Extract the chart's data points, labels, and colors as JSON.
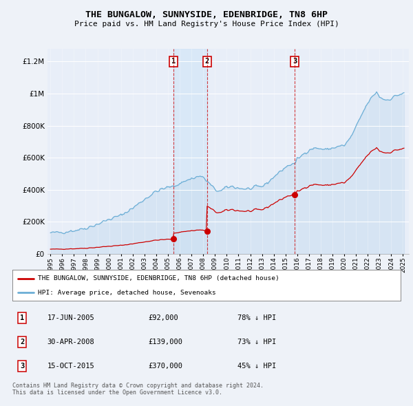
{
  "title": "THE BUNGALOW, SUNNYSIDE, EDENBRIDGE, TN8 6HP",
  "subtitle": "Price paid vs. HM Land Registry's House Price Index (HPI)",
  "ytick_values": [
    0,
    200000,
    400000,
    600000,
    800000,
    1000000,
    1200000
  ],
  "ytick_labels": [
    "£0",
    "£200K",
    "£400K",
    "£600K",
    "£800K",
    "£1M",
    "£1.2M"
  ],
  "ylim": [
    0,
    1280000
  ],
  "xlim_start": 1994.75,
  "xlim_end": 2025.5,
  "sale_events": [
    {
      "label": "1",
      "date_str": "17-JUN-2005",
      "x": 2005.46,
      "price": 92000,
      "pct": "78% ↓ HPI"
    },
    {
      "label": "2",
      "date_str": "30-APR-2008",
      "x": 2008.33,
      "price": 139000,
      "pct": "73% ↓ HPI"
    },
    {
      "label": "3",
      "date_str": "15-OCT-2015",
      "x": 2015.79,
      "price": 370000,
      "pct": "45% ↓ HPI"
    }
  ],
  "hpi_color": "#6baed6",
  "hpi_fill_color": "#c6dbef",
  "price_color": "#cc0000",
  "background_color": "#eef2f8",
  "plot_bg_color": "#e8eef8",
  "grid_color": "#ffffff",
  "legend_label_price": "THE BUNGALOW, SUNNYSIDE, EDENBRIDGE, TN8 6HP (detached house)",
  "legend_label_hpi": "HPI: Average price, detached house, Sevenoaks",
  "footer": "Contains HM Land Registry data © Crown copyright and database right 2024.\nThis data is licensed under the Open Government Licence v3.0."
}
